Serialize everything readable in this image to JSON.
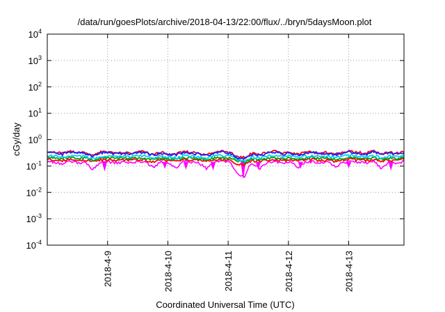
{
  "chart_data": {
    "type": "line",
    "title": "/data/run/goesPlots/archive/2018-04-13/22:00/flux/../bryn/5daysMoon.plot",
    "xlabel": "Coordinated Universal Time (UTC)",
    "ylabel": "cGy/day",
    "yscale": "log",
    "ylim": [
      0.0001,
      10000
    ],
    "yticks": [
      {
        "value": 0.0001,
        "label": "10",
        "exp": "-4"
      },
      {
        "value": 0.001,
        "label": "10",
        "exp": "-3"
      },
      {
        "value": 0.01,
        "label": "10",
        "exp": "-2"
      },
      {
        "value": 0.1,
        "label": "10",
        "exp": "-1"
      },
      {
        "value": 1,
        "label": "10",
        "exp": "0"
      },
      {
        "value": 10,
        "label": "10",
        "exp": "1"
      },
      {
        "value": 100,
        "label": "10",
        "exp": "2"
      },
      {
        "value": 1000,
        "label": "10",
        "exp": "3"
      },
      {
        "value": 10000,
        "label": "10",
        "exp": "4"
      }
    ],
    "xlim": [
      "2018-04-08 00:00",
      "2018-04-13 22:00"
    ],
    "xticks": [
      "2018-4-9",
      "2018-4-10",
      "2018-4-11",
      "2018-4-12",
      "2018-4-13"
    ],
    "grid": true,
    "series": [
      {
        "color": "#ff00ff",
        "base": 0.14,
        "dips": [
          [
            0.95,
            0.07
          ],
          [
            1.95,
            0.085
          ],
          [
            2.3,
            0.08
          ],
          [
            2.75,
            0.075
          ],
          [
            3.25,
            0.035
          ],
          [
            3.5,
            0.08
          ],
          [
            4.2,
            0.085
          ],
          [
            5.0,
            0.09
          ],
          [
            5.7,
            0.075
          ]
        ],
        "values": [
          0.15,
          0.14,
          0.12,
          0.15,
          0.13,
          0.14,
          0.07,
          0.14,
          0.15,
          0.13,
          0.14,
          0.13,
          0.15,
          0.14,
          0.085,
          0.14,
          0.13,
          0.08,
          0.15,
          0.14,
          0.13,
          0.075,
          0.14,
          0.15,
          0.14,
          0.05,
          0.035,
          0.13,
          0.08,
          0.14,
          0.15,
          0.13,
          0.14,
          0.085,
          0.14,
          0.15,
          0.13,
          0.14,
          0.09,
          0.14,
          0.15,
          0.14,
          0.13,
          0.15,
          0.075,
          0.14,
          0.13,
          0.15
        ]
      },
      {
        "color": "#ff0000",
        "base": 0.17,
        "values": [
          0.18,
          0.17,
          0.16,
          0.18,
          0.17,
          0.17,
          0.15,
          0.17,
          0.18,
          0.16,
          0.17,
          0.17,
          0.18,
          0.17,
          0.14,
          0.17,
          0.16,
          0.15,
          0.18,
          0.17,
          0.16,
          0.15,
          0.17,
          0.18,
          0.17,
          0.12,
          0.11,
          0.16,
          0.15,
          0.17,
          0.18,
          0.16,
          0.17,
          0.15,
          0.17,
          0.18,
          0.16,
          0.17,
          0.15,
          0.17,
          0.18,
          0.17,
          0.16,
          0.18,
          0.15,
          0.17,
          0.16,
          0.18
        ]
      },
      {
        "color": "#00a000",
        "base": 0.2,
        "values": [
          0.21,
          0.2,
          0.19,
          0.21,
          0.2,
          0.2,
          0.17,
          0.2,
          0.21,
          0.19,
          0.2,
          0.2,
          0.21,
          0.2,
          0.17,
          0.2,
          0.19,
          0.18,
          0.21,
          0.2,
          0.19,
          0.18,
          0.2,
          0.21,
          0.2,
          0.15,
          0.14,
          0.19,
          0.18,
          0.2,
          0.21,
          0.19,
          0.2,
          0.18,
          0.2,
          0.21,
          0.19,
          0.2,
          0.18,
          0.2,
          0.21,
          0.2,
          0.19,
          0.21,
          0.18,
          0.2,
          0.19,
          0.21
        ]
      },
      {
        "color": "#00ccff",
        "base": 0.24,
        "values": [
          0.25,
          0.24,
          0.22,
          0.25,
          0.24,
          0.23,
          0.19,
          0.24,
          0.25,
          0.22,
          0.24,
          0.23,
          0.25,
          0.24,
          0.2,
          0.24,
          0.22,
          0.2,
          0.25,
          0.24,
          0.22,
          0.21,
          0.24,
          0.25,
          0.24,
          0.17,
          0.16,
          0.22,
          0.2,
          0.24,
          0.25,
          0.22,
          0.24,
          0.21,
          0.24,
          0.25,
          0.22,
          0.24,
          0.21,
          0.24,
          0.25,
          0.24,
          0.22,
          0.25,
          0.21,
          0.24,
          0.22,
          0.25
        ]
      },
      {
        "color": "#ff0000",
        "base": 0.33,
        "values": [
          0.34,
          0.33,
          0.3,
          0.36,
          0.33,
          0.32,
          0.25,
          0.33,
          0.36,
          0.3,
          0.33,
          0.31,
          0.36,
          0.33,
          0.27,
          0.33,
          0.3,
          0.28,
          0.35,
          0.33,
          0.3,
          0.28,
          0.33,
          0.37,
          0.33,
          0.22,
          0.21,
          0.3,
          0.27,
          0.33,
          0.36,
          0.3,
          0.33,
          0.28,
          0.33,
          0.36,
          0.3,
          0.33,
          0.29,
          0.33,
          0.36,
          0.33,
          0.3,
          0.37,
          0.28,
          0.33,
          0.3,
          0.36
        ]
      },
      {
        "color": "#2020ff",
        "base": 0.3,
        "values": [
          0.32,
          0.31,
          0.28,
          0.34,
          0.31,
          0.3,
          0.23,
          0.31,
          0.34,
          0.28,
          0.31,
          0.29,
          0.34,
          0.31,
          0.25,
          0.31,
          0.28,
          0.26,
          0.33,
          0.31,
          0.28,
          0.26,
          0.31,
          0.35,
          0.31,
          0.2,
          0.19,
          0.28,
          0.25,
          0.31,
          0.34,
          0.28,
          0.31,
          0.26,
          0.31,
          0.34,
          0.28,
          0.31,
          0.27,
          0.31,
          0.34,
          0.31,
          0.28,
          0.35,
          0.26,
          0.31,
          0.28,
          0.34
        ]
      }
    ]
  }
}
